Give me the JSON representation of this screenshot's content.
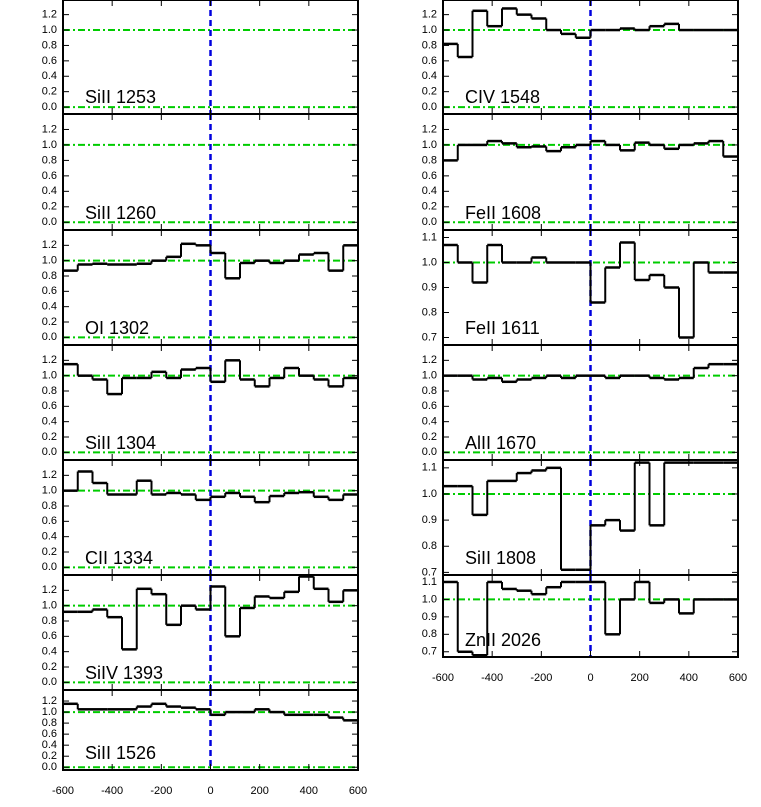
{
  "chart_data": [
    {
      "type": "step",
      "label": "SiII 1253",
      "xlim": [
        -600,
        600
      ],
      "xticks": [
        -600,
        -400,
        -200,
        0,
        200,
        400,
        600
      ],
      "ylim": [
        -0.09,
        1.39
      ],
      "yticks": [
        {
          "value": 0,
          "label": "0.0"
        },
        0.2,
        0.4,
        0.6,
        0.8,
        {
          "value": 1,
          "label": "1.0"
        },
        1.2
      ],
      "hlines": [
        0,
        1
      ],
      "hline_color": "#00cc00",
      "vline": 0,
      "vline_color": "#0000dd",
      "color": "#000000"
    },
    {
      "type": "step",
      "label": "SiII 1260",
      "xlim": [
        -600,
        600
      ],
      "xticks": [
        -600,
        -400,
        -200,
        0,
        200,
        400,
        600
      ],
      "ylim": [
        -0.1,
        1.4
      ],
      "yticks": [
        {
          "value": 0,
          "label": "0.0"
        },
        0.2,
        0.4,
        0.6,
        0.8,
        {
          "value": 1,
          "label": "1.0"
        },
        1.2
      ],
      "hlines": [
        0,
        1
      ],
      "hline_color": "#00cc00",
      "vline": 0,
      "vline_color": "#0000dd",
      "color": "#000000"
    },
    {
      "type": "step",
      "label": "OI 1302",
      "x": [
        -570,
        -510,
        -450,
        -390,
        -330,
        -270,
        -210,
        -150,
        -90,
        -30,
        30,
        90,
        150,
        210,
        270,
        330,
        390,
        450,
        510,
        570
      ],
      "values": [
        0.87,
        0.95,
        0.96,
        0.95,
        0.95,
        0.96,
        1.0,
        1.05,
        1.22,
        1.2,
        1.1,
        0.77,
        0.97,
        1.0,
        0.97,
        1.0,
        1.08,
        1.1,
        0.87,
        1.2
      ],
      "xlim": [
        -600,
        600
      ],
      "xticks": [
        -600,
        -400,
        -200,
        0,
        200,
        400,
        600
      ],
      "ylim": [
        -0.1,
        1.4
      ],
      "yticks": [
        {
          "value": 0,
          "label": "0.0"
        },
        0.2,
        0.4,
        0.6,
        0.8,
        {
          "value": 1,
          "label": "1.0"
        },
        1.2
      ],
      "hlines": [
        0,
        1
      ],
      "hline_color": "#00cc00",
      "vline": 0,
      "vline_color": "#0000dd",
      "color": "#000000"
    },
    {
      "type": "step",
      "label": "SiII 1304",
      "x": [
        -570,
        -510,
        -450,
        -390,
        -330,
        -270,
        -210,
        -150,
        -90,
        -30,
        30,
        90,
        150,
        210,
        270,
        330,
        390,
        450,
        510,
        570
      ],
      "values": [
        1.15,
        1.0,
        0.95,
        0.76,
        0.97,
        0.97,
        1.05,
        0.97,
        1.08,
        1.1,
        0.92,
        1.2,
        0.95,
        0.86,
        0.97,
        1.1,
        1.0,
        0.95,
        0.86,
        0.97
      ],
      "xlim": [
        -600,
        600
      ],
      "xticks": [
        -600,
        -400,
        -200,
        0,
        200,
        400,
        600
      ],
      "ylim": [
        -0.1,
        1.4
      ],
      "yticks": [
        {
          "value": 0,
          "label": "0.0"
        },
        0.2,
        0.4,
        0.6,
        0.8,
        {
          "value": 1,
          "label": "1.0"
        },
        1.2
      ],
      "hlines": [
        0,
        1
      ],
      "hline_color": "#00cc00",
      "vline": 0,
      "vline_color": "#0000dd",
      "color": "#000000"
    },
    {
      "type": "step",
      "label": "CII 1334",
      "x": [
        -570,
        -510,
        -450,
        -390,
        -330,
        -270,
        -210,
        -150,
        -90,
        -30,
        30,
        90,
        150,
        210,
        270,
        330,
        390,
        450,
        510,
        570
      ],
      "values": [
        1.0,
        1.25,
        1.1,
        0.95,
        0.95,
        1.13,
        0.95,
        0.97,
        0.95,
        0.88,
        0.92,
        0.97,
        0.92,
        0.85,
        0.93,
        0.97,
        0.98,
        0.92,
        0.88,
        0.95
      ],
      "xlim": [
        -600,
        600
      ],
      "xticks": [
        -600,
        -400,
        -200,
        0,
        200,
        400,
        600
      ],
      "ylim": [
        -0.1,
        1.4
      ],
      "yticks": [
        {
          "value": 0,
          "label": "0.0"
        },
        0.2,
        0.4,
        0.6,
        0.8,
        {
          "value": 1,
          "label": "1.0"
        },
        1.2
      ],
      "hlines": [
        0,
        1
      ],
      "hline_color": "#00cc00",
      "vline": 0,
      "vline_color": "#0000dd",
      "color": "#000000"
    },
    {
      "type": "step",
      "label": "SiIV 1393",
      "x": [
        -570,
        -510,
        -450,
        -390,
        -330,
        -270,
        -210,
        -150,
        -90,
        -30,
        30,
        90,
        150,
        210,
        270,
        330,
        390,
        450,
        510,
        570
      ],
      "values": [
        0.92,
        0.92,
        0.95,
        0.85,
        0.43,
        1.22,
        1.15,
        0.75,
        1.0,
        0.95,
        1.25,
        0.6,
        0.97,
        1.12,
        1.1,
        1.18,
        1.38,
        1.22,
        1.05,
        1.2
      ],
      "xlim": [
        -600,
        600
      ],
      "xticks": [
        -600,
        -400,
        -200,
        0,
        200,
        400,
        600
      ],
      "ylim": [
        -0.1,
        1.4
      ],
      "yticks": [
        {
          "value": 0,
          "label": "0.0"
        },
        0.2,
        0.4,
        0.6,
        0.8,
        {
          "value": 1,
          "label": "1.0"
        },
        1.2
      ],
      "hlines": [
        0,
        1
      ],
      "hline_color": "#00cc00",
      "vline": 0,
      "vline_color": "#0000dd",
      "color": "#000000"
    },
    {
      "type": "step",
      "label": "SiII 1526",
      "x": [
        -570,
        -510,
        -450,
        -390,
        -330,
        -270,
        -210,
        -150,
        -90,
        -30,
        30,
        90,
        150,
        210,
        270,
        330,
        390,
        450,
        510,
        570
      ],
      "values": [
        1.15,
        1.05,
        1.05,
        1.05,
        1.05,
        1.1,
        1.15,
        1.1,
        1.08,
        1.05,
        0.95,
        1.0,
        1.0,
        1.05,
        1.0,
        0.95,
        0.95,
        0.95,
        0.9,
        0.85
      ],
      "xlim": [
        -600,
        600
      ],
      "xticks": [
        -600,
        -400,
        -200,
        0,
        200,
        400,
        600
      ],
      "xtick_labels": true,
      "ylim": [
        -0.05,
        1.4
      ],
      "yticks": [
        {
          "value": 0,
          "label": "0.0"
        },
        0.2,
        0.4,
        0.6,
        0.8,
        {
          "value": 1,
          "label": "1.0"
        },
        1.2
      ],
      "hlines": [
        0,
        1
      ],
      "hline_color": "#00cc00",
      "vline": 0,
      "vline_color": "#0000dd",
      "color": "#000000"
    },
    {
      "type": "step",
      "label": "CIV 1548",
      "x": [
        -570,
        -510,
        -450,
        -390,
        -330,
        -270,
        -210,
        -150,
        -90,
        -30,
        30,
        90,
        150,
        210,
        270,
        330,
        390,
        450,
        510,
        570
      ],
      "values": [
        0.82,
        0.65,
        1.25,
        1.05,
        1.28,
        1.2,
        1.15,
        1.0,
        0.95,
        0.9,
        1.0,
        1.0,
        1.02,
        1.0,
        1.05,
        1.08,
        1.0,
        1.0,
        1.0,
        1.0
      ],
      "xlim": [
        -600,
        600
      ],
      "xticks": [
        -600,
        -400,
        -200,
        0,
        200,
        400,
        600
      ],
      "ylim": [
        -0.09,
        1.39
      ],
      "yticks": [
        {
          "value": 0,
          "label": "0.0"
        },
        0.2,
        0.4,
        0.6,
        0.8,
        {
          "value": 1,
          "label": "1.0"
        },
        1.2
      ],
      "hlines": [
        0,
        1
      ],
      "hline_color": "#00cc00",
      "vline": 0,
      "vline_color": "#0000dd",
      "color": "#000000"
    },
    {
      "type": "step",
      "label": "FeII 1608",
      "x": [
        -570,
        -510,
        -450,
        -390,
        -330,
        -270,
        -210,
        -150,
        -90,
        -30,
        30,
        90,
        150,
        210,
        270,
        330,
        390,
        450,
        510,
        570
      ],
      "values": [
        0.8,
        1.0,
        1.0,
        1.05,
        1.02,
        0.97,
        0.98,
        0.92,
        0.97,
        1.0,
        1.05,
        1.0,
        0.93,
        1.03,
        1.0,
        0.95,
        1.0,
        1.02,
        1.05,
        0.85
      ],
      "xlim": [
        -600,
        600
      ],
      "xticks": [
        -600,
        -400,
        -200,
        0,
        200,
        400,
        600
      ],
      "ylim": [
        -0.1,
        1.4
      ],
      "yticks": [
        {
          "value": 0,
          "label": "0.0"
        },
        0.2,
        0.4,
        0.6,
        0.8,
        {
          "value": 1,
          "label": "1.0"
        },
        1.2
      ],
      "hlines": [
        0,
        1
      ],
      "hline_color": "#00cc00",
      "vline": 0,
      "vline_color": "#0000dd",
      "color": "#000000"
    },
    {
      "type": "step",
      "label": "FeII 1611",
      "x": [
        -570,
        -510,
        -450,
        -390,
        -330,
        -270,
        -210,
        -150,
        -90,
        -30,
        30,
        90,
        150,
        210,
        270,
        330,
        390,
        450,
        510,
        570
      ],
      "values": [
        1.07,
        1.0,
        0.92,
        1.07,
        1.0,
        1.0,
        1.02,
        1.0,
        1.0,
        1.0,
        0.84,
        0.98,
        1.08,
        0.93,
        0.95,
        0.9,
        0.7,
        1.0,
        0.96,
        0.96
      ],
      "xlim": [
        -600,
        600
      ],
      "xticks": [
        -600,
        -400,
        -200,
        0,
        200,
        400,
        600
      ],
      "ylim": [
        0.67,
        1.13
      ],
      "yticks": [
        0.7,
        0.8,
        0.9,
        {
          "value": 1,
          "label": "1.0"
        },
        1.1
      ],
      "hlines": [
        1
      ],
      "hline_color": "#00cc00",
      "vline": 0,
      "vline_color": "#0000dd",
      "color": "#000000"
    },
    {
      "type": "step",
      "label": "AlII 1670",
      "x": [
        -570,
        -510,
        -450,
        -390,
        -330,
        -270,
        -210,
        -150,
        -90,
        -30,
        30,
        90,
        150,
        210,
        270,
        330,
        390,
        450,
        510,
        570
      ],
      "values": [
        1.0,
        1.0,
        0.95,
        0.97,
        0.92,
        0.95,
        0.97,
        1.0,
        0.97,
        1.0,
        1.0,
        0.97,
        1.0,
        1.0,
        0.97,
        0.95,
        0.97,
        1.1,
        1.15,
        1.15
      ],
      "xlim": [
        -600,
        600
      ],
      "xticks": [
        -600,
        -400,
        -200,
        0,
        200,
        400,
        600
      ],
      "ylim": [
        -0.1,
        1.4
      ],
      "yticks": [
        {
          "value": 0,
          "label": "0.0"
        },
        0.2,
        0.4,
        0.6,
        0.8,
        {
          "value": 1,
          "label": "1.0"
        },
        1.2
      ],
      "hlines": [
        0,
        1
      ],
      "hline_color": "#00cc00",
      "vline": 0,
      "vline_color": "#0000dd",
      "color": "#000000"
    },
    {
      "type": "step",
      "label": "SiII 1808",
      "x": [
        -570,
        -510,
        -450,
        -390,
        -330,
        -270,
        -210,
        -150,
        -90,
        -30,
        30,
        90,
        150,
        210,
        270,
        330,
        390,
        450,
        510,
        570
      ],
      "values": [
        1.03,
        1.03,
        0.92,
        1.05,
        1.05,
        1.08,
        1.09,
        1.1,
        0.71,
        0.71,
        0.88,
        0.9,
        0.86,
        1.12,
        0.88,
        1.12,
        1.12,
        1.12,
        1.12,
        1.12
      ],
      "xlim": [
        -600,
        600
      ],
      "xticks": [
        -600,
        -400,
        -200,
        0,
        200,
        400,
        600
      ],
      "ylim": [
        0.69,
        1.13
      ],
      "yticks": [
        0.7,
        0.8,
        0.9,
        {
          "value": 1,
          "label": "1.0"
        },
        1.1
      ],
      "hlines": [
        1
      ],
      "hline_color": "#00cc00",
      "vline": 0,
      "vline_color": "#0000dd",
      "color": "#000000"
    },
    {
      "type": "step",
      "label": "ZnII 2026",
      "x": [
        -570,
        -510,
        -450,
        -390,
        -330,
        -270,
        -210,
        -150,
        -90,
        -30,
        30,
        90,
        150,
        210,
        270,
        330,
        390,
        450,
        510,
        570
      ],
      "values": [
        1.1,
        0.7,
        0.68,
        1.1,
        1.06,
        1.05,
        1.03,
        1.07,
        1.1,
        1.1,
        1.1,
        0.8,
        1.0,
        1.1,
        0.98,
        1.0,
        0.92,
        1.0,
        1.0,
        1.0
      ],
      "xlim": [
        -600,
        600
      ],
      "xticks": [
        -600,
        -400,
        -200,
        0,
        200,
        400,
        600
      ],
      "xtick_labels": true,
      "ylim": [
        0.67,
        1.14
      ],
      "yticks": [
        0.7,
        0.8,
        0.9,
        {
          "value": 1,
          "label": "1.0"
        },
        1.1
      ],
      "hlines": [
        1
      ],
      "hline_color": "#00cc00",
      "vline": 0,
      "vline_color": "#0000dd",
      "color": "#000000"
    }
  ]
}
